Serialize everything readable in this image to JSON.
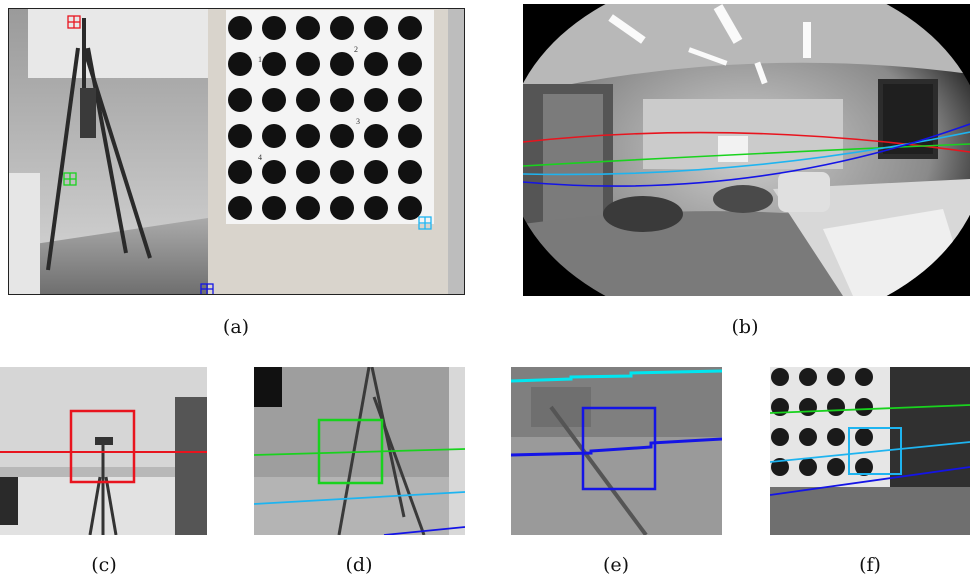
{
  "figure": {
    "captions": {
      "a": "(a)",
      "b": "(b)",
      "c": "(c)",
      "d": "(d)",
      "e": "(e)",
      "f": "(f)"
    },
    "calib_target_numbers": [
      "1",
      "2",
      "3",
      "4"
    ],
    "colors": {
      "red": "#e8141e",
      "green": "#19d21e",
      "cyan": "#1eb4f0",
      "blue": "#1414e6",
      "light_cyan": "#00e6f0"
    }
  }
}
